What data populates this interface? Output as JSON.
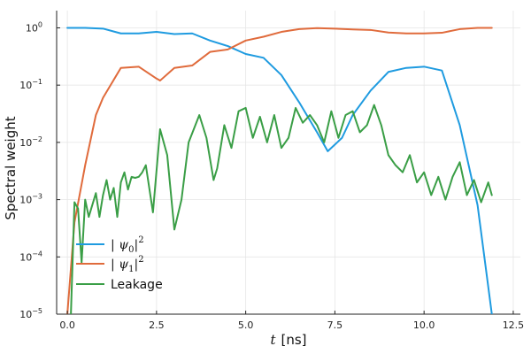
{
  "chart_data": {
    "type": "line",
    "xlabel_var": "t",
    "xlabel_unit": "[ns]",
    "ylabel": "Spectral weight",
    "xlim": [
      -0.3,
      12.7
    ],
    "ylim": [
      1e-05,
      2
    ],
    "yscale": "log",
    "grid": true,
    "legend_position": "bottom-left",
    "x_ticks": [
      {
        "value": 0.0,
        "label": "0.0"
      },
      {
        "value": 2.5,
        "label": "2.5"
      },
      {
        "value": 5.0,
        "label": "5.0"
      },
      {
        "value": 7.5,
        "label": "7.5"
      },
      {
        "value": 10.0,
        "label": "10.0"
      },
      {
        "value": 12.5,
        "label": "12.5"
      }
    ],
    "y_ticks": [
      {
        "value": 1e-05,
        "base": "10",
        "exp": "−5"
      },
      {
        "value": 0.0001,
        "base": "10",
        "exp": "−4"
      },
      {
        "value": 0.001,
        "base": "10",
        "exp": "−3"
      },
      {
        "value": 0.01,
        "base": "10",
        "exp": "−2"
      },
      {
        "value": 0.1,
        "base": "10",
        "exp": "−1"
      },
      {
        "value": 1,
        "base": "10",
        "exp": "0"
      }
    ],
    "series": [
      {
        "name": "|ψ0|²",
        "color": "#1f9be0",
        "x": [
          0,
          0.5,
          1.0,
          1.5,
          2.0,
          2.5,
          3.0,
          3.5,
          4.0,
          4.5,
          5.0,
          5.5,
          6.0,
          6.5,
          7.0,
          7.3,
          7.7,
          8.0,
          8.5,
          9.0,
          9.5,
          10.0,
          10.5,
          11.0,
          11.5,
          11.9
        ],
        "y": [
          1.0,
          1.0,
          0.97,
          0.8,
          0.8,
          0.85,
          0.78,
          0.8,
          0.6,
          0.48,
          0.35,
          0.3,
          0.15,
          0.05,
          0.015,
          0.007,
          0.012,
          0.03,
          0.08,
          0.17,
          0.2,
          0.21,
          0.18,
          0.02,
          0.0008,
          1e-05
        ]
      },
      {
        "name": "|ψ1|²",
        "color": "#e06b3c",
        "x": [
          0,
          0.2,
          0.5,
          0.8,
          1.0,
          1.5,
          2.0,
          2.5,
          2.6,
          3.0,
          3.5,
          4.0,
          4.5,
          5.0,
          5.5,
          6.0,
          6.5,
          7.0,
          7.5,
          8.0,
          8.5,
          9.0,
          9.5,
          10.0,
          10.5,
          11.0,
          11.5,
          11.9
        ],
        "y": [
          1e-05,
          0.0004,
          0.004,
          0.03,
          0.06,
          0.2,
          0.21,
          0.13,
          0.12,
          0.2,
          0.22,
          0.38,
          0.42,
          0.6,
          0.7,
          0.85,
          0.95,
          0.99,
          0.97,
          0.94,
          0.92,
          0.83,
          0.8,
          0.8,
          0.82,
          0.95,
          1.0,
          1.0
        ]
      },
      {
        "name": "Leakage",
        "color": "#3a9e46",
        "x": [
          0.1,
          0.2,
          0.3,
          0.4,
          0.5,
          0.6,
          0.8,
          0.9,
          1.0,
          1.1,
          1.2,
          1.3,
          1.4,
          1.5,
          1.6,
          1.7,
          1.8,
          1.9,
          2.0,
          2.1,
          2.2,
          2.4,
          2.6,
          2.8,
          3.0,
          3.2,
          3.4,
          3.7,
          3.9,
          4.1,
          4.2,
          4.4,
          4.6,
          4.8,
          5.0,
          5.2,
          5.4,
          5.6,
          5.8,
          6.0,
          6.2,
          6.4,
          6.6,
          6.8,
          7.0,
          7.2,
          7.4,
          7.6,
          7.8,
          8.0,
          8.2,
          8.4,
          8.6,
          8.8,
          9.0,
          9.2,
          9.4,
          9.6,
          9.8,
          10.0,
          10.2,
          10.4,
          10.6,
          10.8,
          11.0,
          11.2,
          11.4,
          11.6,
          11.8,
          11.9
        ],
        "y": [
          1e-05,
          0.0009,
          0.0007,
          8e-05,
          0.001,
          0.0005,
          0.0013,
          0.0005,
          0.0012,
          0.0022,
          0.001,
          0.0016,
          0.0005,
          0.002,
          0.003,
          0.0015,
          0.0025,
          0.0024,
          0.0025,
          0.003,
          0.004,
          0.0006,
          0.017,
          0.006,
          0.0003,
          0.001,
          0.01,
          0.03,
          0.012,
          0.0022,
          0.0035,
          0.02,
          0.008,
          0.035,
          0.04,
          0.012,
          0.028,
          0.01,
          0.03,
          0.008,
          0.012,
          0.04,
          0.022,
          0.03,
          0.02,
          0.01,
          0.035,
          0.012,
          0.03,
          0.035,
          0.015,
          0.02,
          0.045,
          0.02,
          0.006,
          0.004,
          0.003,
          0.006,
          0.002,
          0.003,
          0.0012,
          0.0025,
          0.001,
          0.0025,
          0.0045,
          0.0012,
          0.0022,
          0.0009,
          0.002,
          0.0012
        ]
      }
    ]
  },
  "legend": {
    "psi0": {
      "base": "| ψ",
      "sub": "0",
      "tail": "|",
      "sup": "2"
    },
    "psi1": {
      "base": "| ψ",
      "sub": "1",
      "tail": "|",
      "sup": "2"
    },
    "leakage": "Leakage"
  }
}
